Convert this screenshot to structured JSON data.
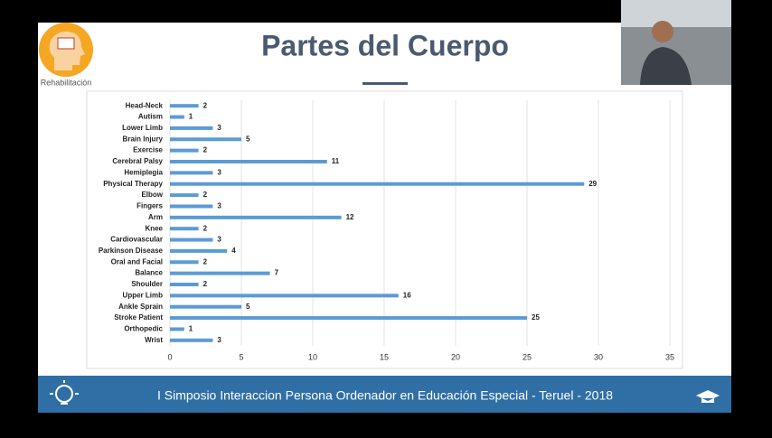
{
  "slide": {
    "logo_caption": "Rehabilitación",
    "footer": "I Simposio Interaccion Persona Ordenador en Educación Especial - Teruel - 2018"
  },
  "chart_data": {
    "type": "bar",
    "orientation": "horizontal",
    "title": "Partes del Cuerpo",
    "categories": [
      "Head-Neck",
      "Autism",
      "Lower Limb",
      "Brain Injury",
      "Exercise",
      "Cerebral Palsy",
      "Hemiplegia",
      "Physical Therapy",
      "Elbow",
      "Fingers",
      "Arm",
      "Knee",
      "Cardiovascular",
      "Parkinson Disease",
      "Oral and Facial",
      "Balance",
      "Shoulder",
      "Upper Limb",
      "Ankle Sprain",
      "Stroke Patient",
      "Orthopedic",
      "Wrist"
    ],
    "values": [
      2,
      1,
      3,
      5,
      2,
      11,
      3,
      29,
      2,
      3,
      12,
      2,
      3,
      4,
      2,
      7,
      2,
      16,
      5,
      25,
      1,
      3
    ],
    "color": "#5b9bd5",
    "xlim": [
      0,
      35
    ],
    "xticks": [
      0,
      5,
      10,
      15,
      20,
      25,
      30,
      35
    ],
    "grid": true
  }
}
